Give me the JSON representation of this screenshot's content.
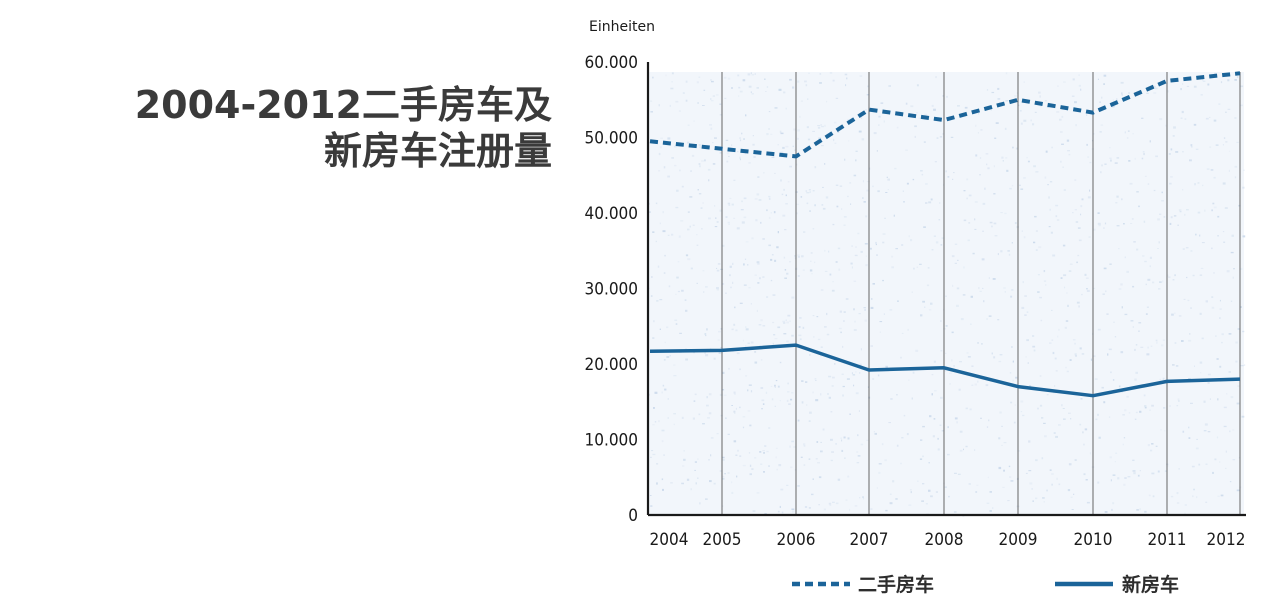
{
  "title_lines": [
    "2004-2012二手房车及",
    "新房车注册量"
  ],
  "chart_data": {
    "type": "line",
    "ylabel": "Einheiten",
    "xlabel": "",
    "x": [
      "2004",
      "2005",
      "2006",
      "2007",
      "2008",
      "2009",
      "2010",
      "2011",
      "2012"
    ],
    "ylim": [
      0,
      60000
    ],
    "yticks": [
      0,
      10000,
      20000,
      30000,
      40000,
      50000,
      60000
    ],
    "ytick_labels": [
      "0",
      "10.000",
      "20.000",
      "30.000",
      "40.000",
      "50.000",
      "60.000"
    ],
    "grid": "vertical",
    "legend_position": "bottom",
    "series": [
      {
        "name": "二手房车",
        "style": "dashed",
        "color": "#1b6499",
        "values": [
          49500,
          48500,
          47500,
          53700,
          52300,
          55000,
          53300,
          57500,
          58500
        ]
      },
      {
        "name": "新房车",
        "style": "solid",
        "color": "#1b6499",
        "values": [
          21700,
          21800,
          22500,
          19200,
          19500,
          17000,
          15800,
          17700,
          18000
        ]
      }
    ]
  }
}
